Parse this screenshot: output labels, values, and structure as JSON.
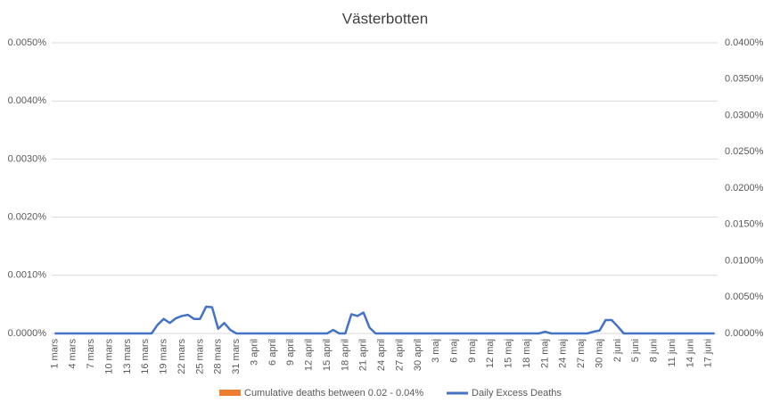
{
  "chart_data": {
    "type": "line",
    "title": "Västerbotten",
    "categories": [
      "1 mars",
      null,
      null,
      "4 mars",
      null,
      null,
      "7 mars",
      null,
      null,
      "10 mars",
      null,
      null,
      "13 mars",
      null,
      null,
      "16 mars",
      null,
      null,
      "19 mars",
      null,
      null,
      "22 mars",
      null,
      null,
      "25 mars",
      null,
      null,
      "28 mars",
      null,
      null,
      "31 mars",
      null,
      null,
      "3 april",
      null,
      null,
      "6 april",
      null,
      null,
      "9 april",
      null,
      null,
      "12 april",
      null,
      null,
      "15 april",
      null,
      null,
      "18 april",
      null,
      null,
      "21 april",
      null,
      null,
      "24 april",
      null,
      null,
      "27 april",
      null,
      null,
      "30 april",
      null,
      null,
      "3 maj",
      null,
      null,
      "6 maj",
      null,
      null,
      "9 maj",
      null,
      null,
      "12 maj",
      null,
      null,
      "15 maj",
      null,
      null,
      "18 maj",
      null,
      null,
      "21 maj",
      null,
      null,
      "24 maj",
      null,
      null,
      "27 maj",
      null,
      null,
      "30 maj",
      null,
      null,
      "2 juni",
      null,
      null,
      "5 juni",
      null,
      null,
      "8 juni",
      null,
      null,
      "11 juni",
      null,
      null,
      "14 juni",
      null,
      null,
      "17 juni",
      null
    ],
    "series": [
      {
        "name": "Cumulative deaths between 0.02 - 0.04%",
        "color": "#ed7d31",
        "axis": "y2",
        "values": [
          null,
          null,
          null,
          null,
          null,
          null,
          null,
          null,
          null,
          null,
          null,
          null,
          null,
          null,
          null,
          null,
          null,
          null,
          null,
          null,
          null,
          null,
          null,
          null,
          null,
          null,
          null,
          null,
          null,
          null,
          null,
          null,
          null,
          null,
          null,
          null,
          null,
          null,
          null,
          null,
          null,
          null,
          null,
          null,
          null,
          null,
          null,
          null,
          null,
          null,
          null,
          null,
          null,
          null,
          null,
          null,
          null,
          null,
          null,
          null,
          null,
          null,
          null,
          null,
          null,
          null,
          null,
          null,
          null,
          null,
          null,
          null,
          null,
          null,
          null,
          null,
          null,
          null,
          null,
          null,
          null,
          null,
          null,
          null,
          null,
          null,
          null,
          null,
          null,
          null,
          null,
          null,
          null,
          null,
          null,
          null,
          null,
          null,
          null,
          null,
          null,
          null,
          null,
          null,
          null,
          null,
          null,
          null,
          null,
          null
        ]
      },
      {
        "name": "Daily Excess Deaths",
        "color": "#4472c4",
        "values": [
          0,
          0,
          0,
          0,
          0,
          0,
          0,
          0,
          0,
          0,
          0,
          0,
          0,
          0,
          0,
          0,
          0,
          0.00015,
          0.00025,
          0.00018,
          0.00026,
          0.0003,
          0.00032,
          0.00025,
          0.00025,
          0.00046,
          0.00045,
          8e-05,
          0.00018,
          6e-05,
          0,
          0,
          0,
          0,
          0,
          0,
          0,
          0,
          0,
          0,
          0,
          0,
          0,
          0,
          0,
          0,
          6e-05,
          0,
          0,
          0.00033,
          0.0003,
          0.00036,
          0.0001,
          0,
          0,
          0,
          0,
          0,
          0,
          0,
          0,
          0,
          0,
          0,
          0,
          0,
          0,
          0,
          0,
          0,
          0,
          0,
          0,
          0,
          0,
          0,
          0,
          0,
          0,
          0,
          0,
          3e-05,
          0,
          0,
          0,
          0,
          0,
          0,
          0,
          3e-05,
          5e-05,
          0.00023,
          0.00023,
          0.00012,
          0,
          0,
          0,
          0,
          0,
          0,
          0,
          0,
          0,
          0,
          0,
          0,
          0,
          0,
          0,
          0
        ]
      }
    ],
    "ylim": [
      0,
      0.005
    ],
    "yticks": [
      {
        "value": 0,
        "label": "0.0000%"
      },
      {
        "value": 0.001,
        "label": "0.0010%"
      },
      {
        "value": 0.002,
        "label": "0.0020%"
      },
      {
        "value": 0.003,
        "label": "0.0030%"
      },
      {
        "value": 0.004,
        "label": "0.0040%"
      },
      {
        "value": 0.005,
        "label": "0.0050%"
      }
    ],
    "y2lim": [
      0,
      0.04
    ],
    "y2ticks": [
      {
        "value": 0,
        "label": "0.0000%"
      },
      {
        "value": 0.005,
        "label": "0.0050%"
      },
      {
        "value": 0.01,
        "label": "0.0100%"
      },
      {
        "value": 0.015,
        "label": "0.0150%"
      },
      {
        "value": 0.02,
        "label": "0.0200%"
      },
      {
        "value": 0.025,
        "label": "0.0250%"
      },
      {
        "value": 0.03,
        "label": "0.0300%"
      },
      {
        "value": 0.035,
        "label": "0.0350%"
      },
      {
        "value": 0.04,
        "label": "0.0400%"
      }
    ],
    "grid": true,
    "legend": "bottom"
  }
}
